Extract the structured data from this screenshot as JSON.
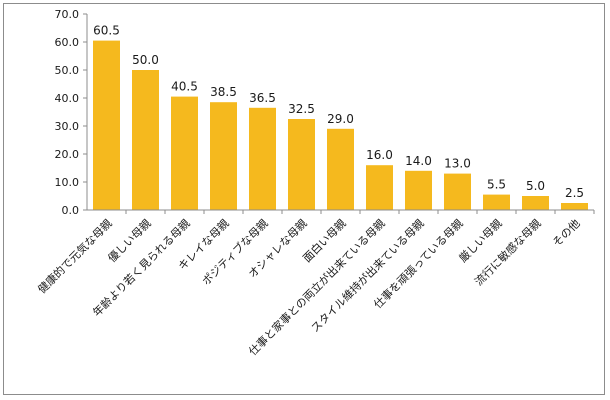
{
  "chart_data": {
    "type": "bar",
    "categories": [
      "健康的で元気な母親",
      "優しい母親",
      "年齢より若く見られる母親",
      "キレイな母親",
      "ポジティブな母親",
      "オシャレな母親",
      "面白い母親",
      "仕事と家事との両立が出来ている母親",
      "スタイル維持が出来ている母親",
      "仕事を頑張っている母親",
      "厳しい母親",
      "流行に敏感な母親",
      "その他"
    ],
    "values": [
      60.5,
      50.0,
      40.5,
      38.5,
      36.5,
      32.5,
      29.0,
      16.0,
      14.0,
      13.0,
      5.5,
      5.0,
      2.5
    ],
    "value_labels": [
      "60.5",
      "50.0",
      "40.5",
      "38.5",
      "36.5",
      "32.5",
      "29.0",
      "16.0",
      "14.0",
      "13.0",
      "5.5",
      "5.0",
      "2.5"
    ],
    "yticks": [
      "0.0",
      "10.0",
      "20.0",
      "30.0",
      "40.0",
      "50.0",
      "60.0",
      "70.0"
    ],
    "ylim": [
      0,
      70
    ],
    "bar_color": "#F5B91E",
    "axis_color": "#8c8c8c",
    "grid": false,
    "legend": "none",
    "title": "",
    "xlabel": "",
    "ylabel": ""
  }
}
